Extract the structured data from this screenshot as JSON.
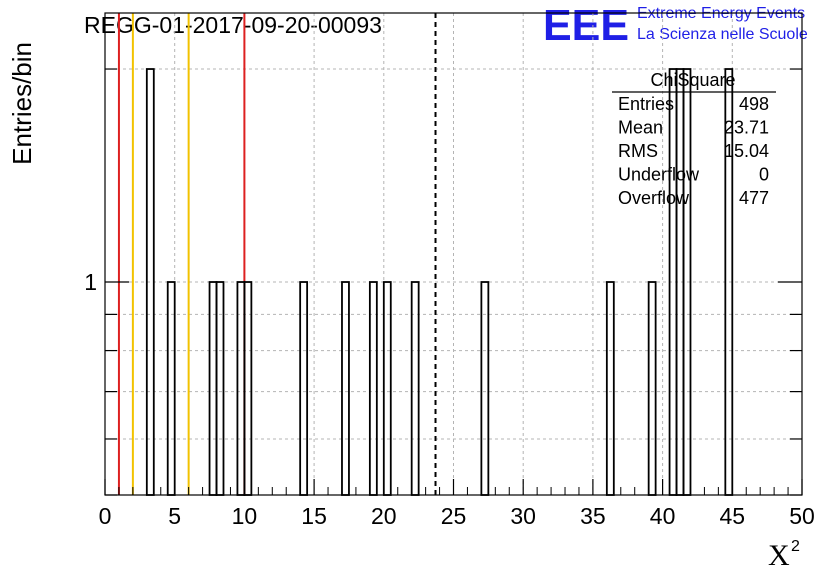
{
  "chart_data": {
    "type": "bar",
    "title": "REGG-01-2017-09-20-00093",
    "xlabel": "X",
    "xlabel_superscript": "2",
    "ylabel": "Entries/bin",
    "xlim": [
      0,
      50
    ],
    "ylim": [
      0.5,
      2.4
    ],
    "yscale": "log",
    "bin_width": 0.5,
    "grid": true,
    "x_ticks": [
      0,
      5,
      10,
      15,
      20,
      25,
      30,
      35,
      40,
      45,
      50
    ],
    "x_tick_labels": [
      "0",
      "5",
      "10",
      "15",
      "20",
      "25",
      "30",
      "35",
      "40",
      "45",
      "50"
    ],
    "y_ticks": [
      1
    ],
    "y_tick_labels": [
      "1"
    ],
    "bins": [
      {
        "x": 3.0,
        "value": 2
      },
      {
        "x": 4.5,
        "value": 1
      },
      {
        "x": 7.5,
        "value": 1
      },
      {
        "x": 8.0,
        "value": 1
      },
      {
        "x": 9.5,
        "value": 1
      },
      {
        "x": 10.0,
        "value": 1
      },
      {
        "x": 14.0,
        "value": 1
      },
      {
        "x": 17.0,
        "value": 1
      },
      {
        "x": 19.0,
        "value": 1
      },
      {
        "x": 20.0,
        "value": 1
      },
      {
        "x": 22.0,
        "value": 1
      },
      {
        "x": 27.0,
        "value": 1
      },
      {
        "x": 36.0,
        "value": 1
      },
      {
        "x": 39.0,
        "value": 1
      },
      {
        "x": 40.5,
        "value": 2
      },
      {
        "x": 41.0,
        "value": 2
      },
      {
        "x": 41.5,
        "value": 2
      },
      {
        "x": 44.5,
        "value": 2
      }
    ],
    "vertical_lines": [
      {
        "x": 1.0,
        "color": "#dd2020",
        "style": "solid"
      },
      {
        "x": 2.0,
        "color": "#f2c200",
        "style": "solid"
      },
      {
        "x": 6.0,
        "color": "#f2c200",
        "style": "solid"
      },
      {
        "x": 10.0,
        "color": "#dd2020",
        "style": "solid"
      },
      {
        "x": 23.71,
        "color": "#000000",
        "style": "dashed"
      }
    ]
  },
  "stats": {
    "name": "ChiSquare",
    "rows": [
      {
        "label": "Entries",
        "value": "498"
      },
      {
        "label": "Mean",
        "value": "23.71"
      },
      {
        "label": "RMS",
        "value": "15.04"
      },
      {
        "label": "Underflow",
        "value": "0"
      },
      {
        "label": "Overflow",
        "value": "477"
      }
    ]
  },
  "branding": {
    "logo": "EEE",
    "line1": "Extreme Energy Events",
    "line2": "La Scienza nelle Scuole"
  },
  "colors": {
    "histogram": "#000000",
    "grid": "#b4b4b4",
    "brand": "#1f1fe6"
  }
}
